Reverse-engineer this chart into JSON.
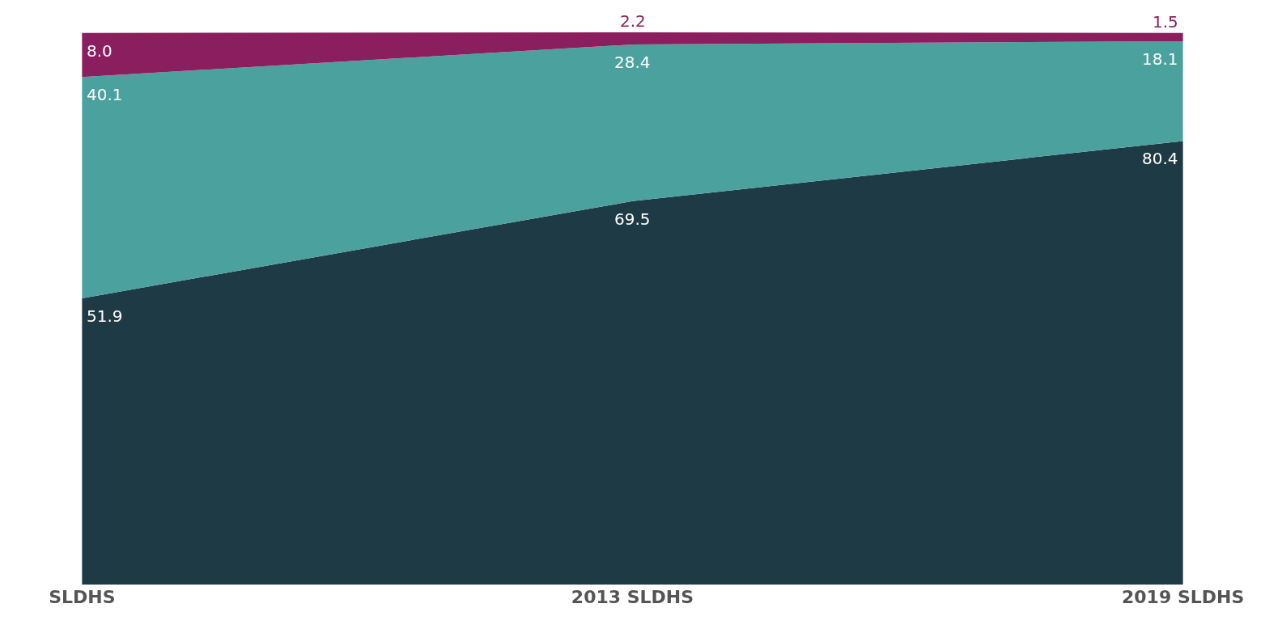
{
  "chart_data": {
    "type": "area",
    "stacked": true,
    "categories": [
      "SLDHS",
      "2013 SLDHS",
      "2019 SLDHS"
    ],
    "series": [
      {
        "color": "#1e3a44",
        "values": [
          51.9,
          69.5,
          80.4
        ],
        "value_labels": [
          "51.9",
          "69.5",
          "80.4"
        ]
      },
      {
        "color": "#4aa19e",
        "values": [
          40.1,
          28.4,
          18.1
        ],
        "value_labels": [
          "40.1",
          "28.4",
          "18.1"
        ]
      },
      {
        "color": "#8b1e5e",
        "values": [
          8.0,
          2.2,
          1.5
        ],
        "value_labels": [
          "8.0",
          "2.2",
          "1.5"
        ]
      }
    ]
  }
}
